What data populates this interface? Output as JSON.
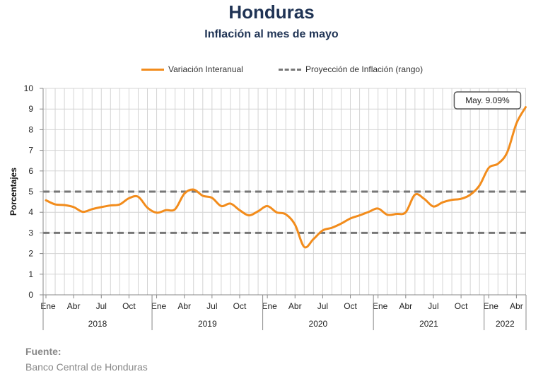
{
  "header": {
    "title": "Honduras",
    "subtitle": "Inflación al mes de mayo"
  },
  "legend": {
    "series_label": "Variación Interanual",
    "range_label": "Proyección de Inflación (rango)"
  },
  "source": {
    "label": "Fuente:",
    "text": "Banco Central de Honduras"
  },
  "colors": {
    "series": "#f28c1c",
    "range": "#777777",
    "grid": "#d4d4d4",
    "axis": "#888888"
  },
  "chart_data": {
    "type": "line",
    "ylabel": "Porcentajes",
    "ylim": [
      0,
      10
    ],
    "yticks": [
      "0",
      "1",
      "2",
      "3",
      "4",
      "5",
      "6",
      "7",
      "8",
      "9",
      "10"
    ],
    "month_ticks": [
      "Ene",
      "Abr",
      "Jul",
      "Oct",
      "Ene",
      "Abr",
      "Jul",
      "Oct",
      "Ene",
      "Abr",
      "Jul",
      "Oct",
      "Ene",
      "Abr",
      "Jul",
      "Oct",
      "Ene",
      "Abr"
    ],
    "years": [
      "2018",
      "2019",
      "2020",
      "2021",
      "2022"
    ],
    "annotation": "May. 9.09%",
    "range": [
      3,
      5
    ],
    "series": [
      {
        "name": "Variación Interanual",
        "values": [
          4.58,
          4.38,
          4.35,
          4.25,
          4.02,
          4.15,
          4.25,
          4.33,
          4.38,
          4.68,
          4.75,
          4.22,
          3.98,
          4.1,
          4.15,
          4.9,
          5.1,
          4.8,
          4.7,
          4.3,
          4.42,
          4.1,
          3.85,
          4.05,
          4.3,
          4.0,
          3.9,
          3.4,
          2.32,
          2.7,
          3.12,
          3.25,
          3.45,
          3.7,
          3.85,
          4.02,
          4.18,
          3.88,
          3.92,
          4.0,
          4.85,
          4.65,
          4.28,
          4.48,
          4.6,
          4.65,
          4.85,
          5.3,
          6.15,
          6.35,
          6.9,
          8.3,
          9.09
        ]
      }
    ]
  }
}
